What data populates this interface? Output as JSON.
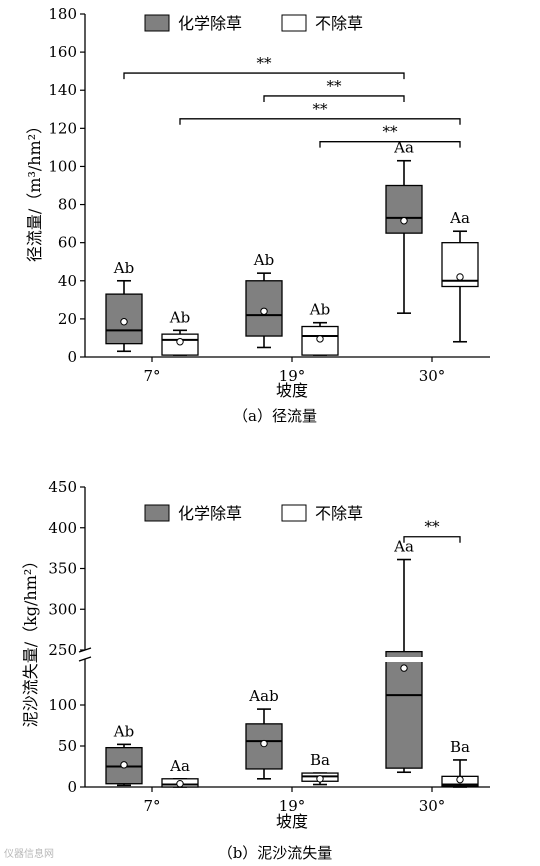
{
  "chart_data": [
    {
      "type": "box",
      "caption": "（a）径流量",
      "xlabel": "坡度",
      "ylabel": "径流量/（m³/hm²）",
      "ylim": [
        0,
        180
      ],
      "yticks": [
        0,
        20,
        40,
        60,
        80,
        100,
        120,
        140,
        160,
        180
      ],
      "categories": [
        "7°",
        "19°",
        "30°"
      ],
      "legend": [
        {
          "label": "化学除草",
          "color": "#808080"
        },
        {
          "label": "不除草",
          "color": "#ffffff"
        }
      ],
      "series": [
        {
          "name": "化学除草",
          "color": "#808080",
          "boxes": [
            {
              "min": 3,
              "q1": 7,
              "median": 14,
              "q3": 33,
              "max": 40,
              "mean": 18.5,
              "label": "Ab"
            },
            {
              "min": 5,
              "q1": 11,
              "median": 22,
              "q3": 40,
              "max": 44,
              "mean": 24,
              "label": "Ab"
            },
            {
              "min": 23,
              "q1": 65,
              "median": 73,
              "q3": 90,
              "max": 103,
              "mean": 71.5,
              "label": "Aa"
            }
          ]
        },
        {
          "name": "不除草",
          "color": "#ffffff",
          "boxes": [
            {
              "min": 1,
              "q1": 1,
              "median": 9,
              "q3": 12,
              "max": 14,
              "mean": 8,
              "label": "Ab"
            },
            {
              "min": 1,
              "q1": 1,
              "median": 11,
              "q3": 16,
              "max": 18,
              "mean": 9.5,
              "label": "Ab"
            },
            {
              "min": 8,
              "q1": 37,
              "median": 40,
              "q3": 60,
              "max": 66,
              "mean": 42,
              "label": "Aa"
            }
          ]
        }
      ],
      "significance": [
        {
          "from": [
            0,
            0
          ],
          "to": [
            2,
            0
          ],
          "label": "**",
          "y": 149
        },
        {
          "from": [
            1,
            0
          ],
          "to": [
            2,
            0
          ],
          "label": "**",
          "y": 137
        },
        {
          "from": [
            0,
            1
          ],
          "to": [
            2,
            1
          ],
          "label": "**",
          "y": 125
        },
        {
          "from": [
            1,
            1
          ],
          "to": [
            2,
            1
          ],
          "label": "**",
          "y": 113
        }
      ]
    },
    {
      "type": "box",
      "caption": "（b）泥沙流失量",
      "xlabel": "坡度",
      "ylabel": "泥沙流失量/（kg/hm²）",
      "axis_break": [
        130,
        240
      ],
      "ylim": [
        0,
        450
      ],
      "yticks": [
        0,
        50,
        100,
        250,
        300,
        350,
        400,
        450
      ],
      "categories": [
        "7°",
        "19°",
        "30°"
      ],
      "legend": [
        {
          "label": "化学除草",
          "color": "#808080"
        },
        {
          "label": "不除草",
          "color": "#ffffff"
        }
      ],
      "series": [
        {
          "name": "化学除草",
          "color": "#808080",
          "boxes": [
            {
              "min": 2,
              "q1": 4,
              "median": 25,
              "q3": 48,
              "max": 52,
              "mean": 27,
              "label": "Ab"
            },
            {
              "min": 10,
              "q1": 22,
              "median": 56,
              "q3": 77,
              "max": 95,
              "mean": 53,
              "label": "Aab"
            },
            {
              "min": 18,
              "q1": 23,
              "median": 112,
              "q3": 248,
              "max": 361,
              "mean": 145,
              "label": "Aa"
            }
          ]
        },
        {
          "name": "不除草",
          "color": "#ffffff",
          "boxes": [
            {
              "min": 0,
              "q1": 0,
              "median": 3,
              "q3": 10,
              "max": 10,
              "mean": 4,
              "label": "Aa"
            },
            {
              "min": 3,
              "q1": 7,
              "median": 13,
              "q3": 17,
              "max": 17,
              "mean": 10,
              "label": "Ba"
            },
            {
              "min": 0,
              "q1": 1,
              "median": 3,
              "q3": 13,
              "max": 33,
              "mean": 9,
              "label": "Ba"
            }
          ]
        }
      ],
      "significance": [
        {
          "from": [
            2,
            0
          ],
          "to": [
            2,
            1
          ],
          "label": "**",
          "y": 389
        }
      ]
    }
  ],
  "watermark": "仪器信息网"
}
